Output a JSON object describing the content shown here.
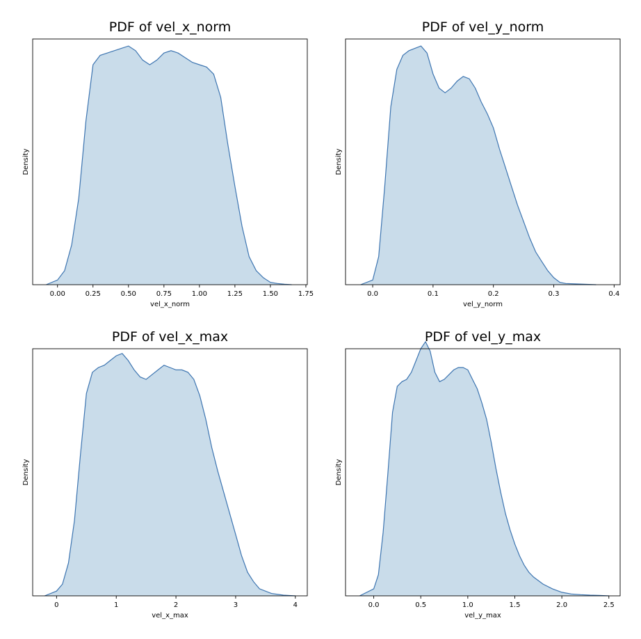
{
  "chart_data": [
    {
      "type": "area",
      "title": "PDF of vel_x_norm",
      "xlabel": "vel_x_norm",
      "ylabel": "Density",
      "xlim": [
        -0.175,
        1.76
      ],
      "ylim": [
        0,
        1.05
      ],
      "xticks": [
        0.0,
        0.25,
        0.5,
        0.75,
        1.0,
        1.25,
        1.5,
        1.75
      ],
      "xtick_labels": [
        "0.00",
        "0.25",
        "0.50",
        "0.75",
        "1.00",
        "1.25",
        "1.50",
        "1.75"
      ],
      "color": "#3c74b0",
      "fill_color": "#c9dcea",
      "x": [
        -0.08,
        0.0,
        0.05,
        0.1,
        0.15,
        0.2,
        0.25,
        0.3,
        0.35,
        0.4,
        0.45,
        0.5,
        0.55,
        0.6,
        0.65,
        0.7,
        0.75,
        0.8,
        0.85,
        0.9,
        0.95,
        1.0,
        1.05,
        1.1,
        1.15,
        1.2,
        1.25,
        1.3,
        1.35,
        1.4,
        1.45,
        1.5,
        1.55,
        1.6,
        1.65
      ],
      "y": [
        0.0,
        0.02,
        0.06,
        0.17,
        0.37,
        0.7,
        0.94,
        0.98,
        0.99,
        1.0,
        1.01,
        1.02,
        1.0,
        0.96,
        0.94,
        0.96,
        0.99,
        1.0,
        0.99,
        0.97,
        0.95,
        0.94,
        0.93,
        0.9,
        0.8,
        0.6,
        0.42,
        0.25,
        0.12,
        0.06,
        0.03,
        0.01,
        0.005,
        0.002,
        0.0
      ]
    },
    {
      "type": "area",
      "title": "PDF of vel_y_norm",
      "xlabel": "vel_y_norm",
      "ylabel": "Density",
      "xlim": [
        -0.045,
        0.41
      ],
      "ylim": [
        0,
        1.05
      ],
      "xticks": [
        0.0,
        0.1,
        0.2,
        0.3,
        0.4
      ],
      "xtick_labels": [
        "0.0",
        "0.1",
        "0.2",
        "0.3",
        "0.4"
      ],
      "color": "#3c74b0",
      "fill_color": "#c9dcea",
      "x": [
        -0.02,
        0.0,
        0.01,
        0.02,
        0.03,
        0.04,
        0.05,
        0.06,
        0.07,
        0.08,
        0.09,
        0.1,
        0.11,
        0.12,
        0.13,
        0.14,
        0.15,
        0.16,
        0.17,
        0.18,
        0.19,
        0.2,
        0.21,
        0.22,
        0.23,
        0.24,
        0.25,
        0.26,
        0.27,
        0.28,
        0.29,
        0.3,
        0.31,
        0.32,
        0.34,
        0.37
      ],
      "y": [
        0.0,
        0.02,
        0.12,
        0.42,
        0.76,
        0.92,
        0.98,
        1.0,
        1.01,
        1.02,
        0.99,
        0.9,
        0.84,
        0.82,
        0.84,
        0.87,
        0.89,
        0.88,
        0.84,
        0.78,
        0.73,
        0.67,
        0.58,
        0.5,
        0.42,
        0.34,
        0.27,
        0.2,
        0.14,
        0.1,
        0.06,
        0.03,
        0.01,
        0.005,
        0.003,
        0.0
      ]
    },
    {
      "type": "area",
      "title": "PDF of vel_x_max",
      "xlabel": "vel_x_max",
      "ylabel": "Density",
      "xlim": [
        -0.4,
        4.2
      ],
      "ylim": [
        0,
        1.05
      ],
      "xticks": [
        0,
        1,
        2,
        3,
        4
      ],
      "xtick_labels": [
        "0",
        "1",
        "2",
        "3",
        "4"
      ],
      "color": "#3c74b0",
      "fill_color": "#c9dcea",
      "x": [
        -0.2,
        0.0,
        0.1,
        0.2,
        0.3,
        0.4,
        0.5,
        0.6,
        0.7,
        0.8,
        0.9,
        1.0,
        1.1,
        1.2,
        1.3,
        1.4,
        1.5,
        1.6,
        1.7,
        1.8,
        1.9,
        2.0,
        2.1,
        2.2,
        2.3,
        2.4,
        2.5,
        2.6,
        2.7,
        2.8,
        2.9,
        3.0,
        3.1,
        3.2,
        3.3,
        3.4,
        3.6,
        3.8,
        4.0
      ],
      "y": [
        0.0,
        0.02,
        0.05,
        0.14,
        0.32,
        0.6,
        0.86,
        0.95,
        0.97,
        0.98,
        1.0,
        1.02,
        1.03,
        1.0,
        0.96,
        0.93,
        0.92,
        0.94,
        0.96,
        0.98,
        0.97,
        0.96,
        0.96,
        0.95,
        0.92,
        0.85,
        0.75,
        0.63,
        0.53,
        0.44,
        0.35,
        0.26,
        0.17,
        0.1,
        0.06,
        0.03,
        0.01,
        0.003,
        0.0
      ]
    },
    {
      "type": "area",
      "title": "PDF of vel_y_max",
      "xlabel": "vel_y_max",
      "ylabel": "Density",
      "xlim": [
        -0.3,
        2.62
      ],
      "ylim": [
        0,
        1.05
      ],
      "xticks": [
        0.0,
        0.5,
        1.0,
        1.5,
        2.0,
        2.5
      ],
      "xtick_labels": [
        "0.0",
        "0.5",
        "1.0",
        "1.5",
        "2.0",
        "2.5"
      ],
      "color": "#3c74b0",
      "fill_color": "#c9dcea",
      "x": [
        -0.15,
        0.0,
        0.05,
        0.1,
        0.15,
        0.2,
        0.25,
        0.3,
        0.35,
        0.4,
        0.45,
        0.5,
        0.55,
        0.6,
        0.65,
        0.7,
        0.75,
        0.8,
        0.85,
        0.9,
        0.95,
        1.0,
        1.05,
        1.1,
        1.15,
        1.2,
        1.25,
        1.3,
        1.35,
        1.4,
        1.45,
        1.5,
        1.55,
        1.6,
        1.65,
        1.7,
        1.8,
        1.9,
        2.0,
        2.1,
        2.2,
        2.3,
        2.4,
        2.5
      ],
      "y": [
        0.0,
        0.03,
        0.09,
        0.27,
        0.52,
        0.78,
        0.89,
        0.91,
        0.92,
        0.95,
        1.0,
        1.05,
        1.08,
        1.04,
        0.95,
        0.91,
        0.92,
        0.94,
        0.96,
        0.97,
        0.97,
        0.96,
        0.92,
        0.88,
        0.82,
        0.75,
        0.65,
        0.54,
        0.44,
        0.35,
        0.28,
        0.22,
        0.17,
        0.13,
        0.1,
        0.08,
        0.05,
        0.03,
        0.015,
        0.008,
        0.005,
        0.003,
        0.002,
        0.0
      ]
    }
  ]
}
